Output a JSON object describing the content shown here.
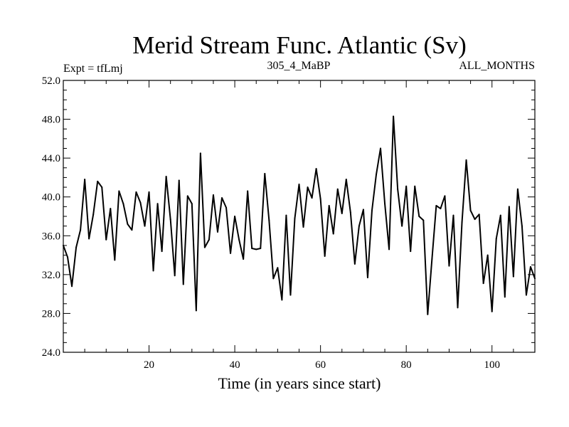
{
  "chart_data": {
    "type": "line",
    "title": "Merid Stream Func. Atlantic (Sv)",
    "subtitle_left": "Expt = tfLmj",
    "subtitle_center": "305_4_MaBP",
    "subtitle_right": "ALL_MONTHS",
    "xlabel": "Time (in years since start)",
    "ylabel": "",
    "xlim": [
      0,
      110
    ],
    "ylim": [
      24.0,
      52.0
    ],
    "x_ticks": [
      20,
      40,
      60,
      80,
      100
    ],
    "x_tick_labels": [
      "20",
      "40",
      "60",
      "80",
      "100"
    ],
    "y_ticks": [
      24,
      28,
      32,
      36,
      40,
      44,
      48,
      52
    ],
    "y_tick_labels": [
      "24.0",
      "28.0",
      "32.0",
      "36.0",
      "40.0",
      "44.0",
      "48.0",
      "52.0"
    ],
    "grid": false,
    "series": [
      {
        "name": "Merid Stream Func. Atlantic",
        "color": "#000000",
        "x": [
          0,
          1,
          2,
          3,
          4,
          5,
          6,
          7,
          8,
          9,
          10,
          11,
          12,
          13,
          14,
          15,
          16,
          17,
          18,
          19,
          20,
          21,
          22,
          23,
          24,
          25,
          26,
          27,
          28,
          29,
          30,
          31,
          32,
          33,
          34,
          35,
          36,
          37,
          38,
          39,
          40,
          41,
          42,
          43,
          44,
          45,
          46,
          47,
          48,
          49,
          50,
          51,
          52,
          53,
          54,
          55,
          56,
          57,
          58,
          59,
          60,
          61,
          62,
          63,
          64,
          65,
          66,
          67,
          68,
          69,
          70,
          71,
          72,
          73,
          74,
          75,
          76,
          77,
          78,
          79,
          80,
          81,
          82,
          83,
          84,
          85,
          86,
          87,
          88,
          89,
          90,
          91,
          92,
          93,
          94,
          95,
          96,
          97,
          98,
          99,
          100,
          101,
          102,
          103,
          104,
          105,
          106,
          107,
          108,
          109,
          110
        ],
        "values": [
          35.0,
          33.8,
          30.8,
          34.8,
          36.6,
          41.8,
          35.7,
          38.2,
          41.6,
          41.0,
          35.6,
          38.8,
          33.5,
          40.6,
          39.3,
          37.2,
          36.6,
          40.5,
          39.4,
          37.0,
          40.5,
          32.4,
          39.3,
          34.4,
          42.1,
          37.7,
          31.9,
          41.7,
          31.0,
          40.1,
          39.3,
          28.3,
          44.5,
          34.8,
          35.6,
          40.2,
          36.4,
          39.9,
          38.9,
          34.2,
          38.0,
          35.6,
          33.6,
          40.6,
          34.7,
          34.6,
          34.7,
          42.4,
          37.6,
          31.6,
          32.7,
          29.4,
          38.1,
          29.9,
          37.8,
          41.3,
          36.9,
          41.0,
          39.9,
          42.9,
          39.8,
          33.9,
          39.1,
          36.2,
          40.8,
          38.3,
          41.8,
          38.4,
          33.1,
          37.0,
          38.7,
          31.7,
          38.6,
          42.3,
          45.0,
          39.3,
          34.6,
          48.3,
          40.8,
          37.0,
          41.1,
          34.4,
          41.1,
          38.0,
          37.6,
          27.9,
          33.6,
          39.1,
          38.8,
          40.1,
          32.9,
          38.1,
          28.6,
          37.4,
          43.8,
          38.6,
          37.7,
          38.2,
          31.1,
          34.0,
          28.2,
          35.7,
          38.1,
          29.7,
          39.0,
          31.8,
          40.8,
          37.0,
          29.9,
          32.8,
          31.6
        ]
      }
    ]
  }
}
